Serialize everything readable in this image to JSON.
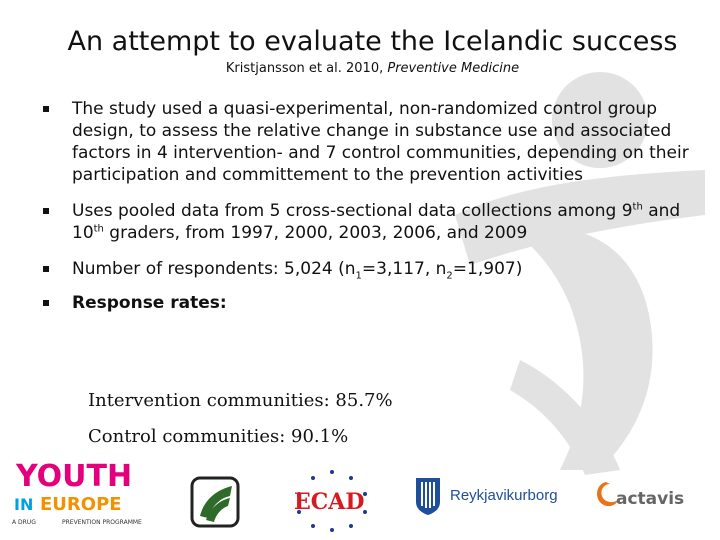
{
  "slide": {
    "title": "An attempt to evaluate the Icelandic success",
    "subtitle_authors": "Kristjansson et al. 2010, ",
    "subtitle_journal": "Preventive Medicine"
  },
  "bullets": {
    "b1": "The study used a quasi-experimental, non-randomized control group design, to assess the relative change in substance use and associated factors in 4 intervention- and 7 control communities, depending on their participation and committement to the prevention activities",
    "b2_part1": "Uses pooled data from 5 cross-sectional data collections among 9",
    "b2_sup1": "th",
    "b2_part2": " and 10",
    "b2_sup2": "th",
    "b2_part3": " graders, from 1997, 2000, 2003, 2006, and 2009",
    "b3_part1": "Number of respondents: 5,024 (n",
    "b3_sub1": "1",
    "b3_part2": "=3,117, n",
    "b3_sub2": "2",
    "b3_part3": "=1,907)",
    "b4": "Response rates:"
  },
  "response_rates": {
    "intervention": "Intervention communities: 85.7%",
    "control": "Control communities: 90.1%"
  },
  "logos": {
    "youth_line1": "YOUTH",
    "youth_line2_a": "IN",
    "youth_line2_b": "EUROPE",
    "youth_tag_left": "A DRUG",
    "youth_tag_right": "PREVENTION PROGRAMME",
    "ecad": "ECAD",
    "reykjavik": "Reykjavikurborg",
    "actavis": "actavis"
  },
  "colors": {
    "watermark": "#dcdcdc",
    "youth_y": "#e4007c",
    "youth_o": "#f29200",
    "youth_u": "#00a0e3",
    "youth_t": "#8dc63f",
    "youth_h": "#e30613",
    "ecad_blue": "#1d3c8f",
    "ecad_red": "#d71920",
    "reykjavik_blue": "#1f4e9c",
    "actavis_orange": "#e8731a",
    "actavis_gray": "#666666",
    "green_logo": "#2e6b2a"
  }
}
